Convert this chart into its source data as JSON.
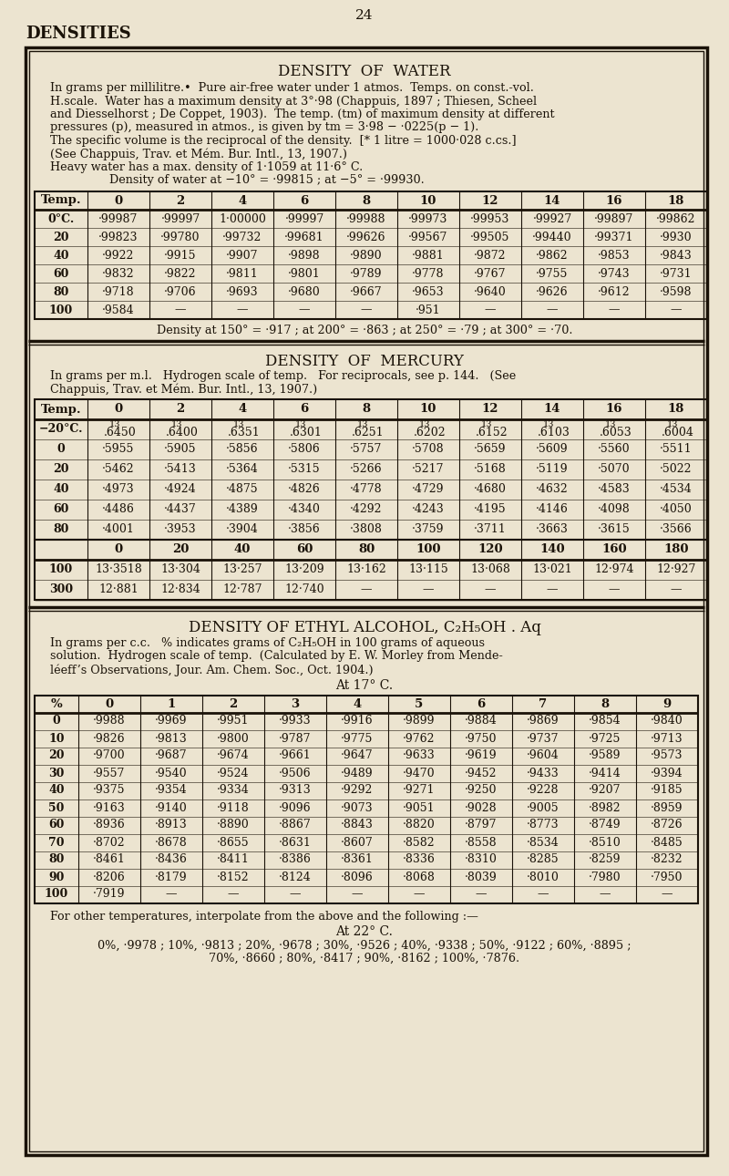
{
  "page_number": "24",
  "section_header": "DENSITIES",
  "bg_color": "#ece4d0",
  "text_color": "#1a1208",
  "water": {
    "title": "DENSITY  OF  WATER",
    "desc_lines": [
      "In grams per millilitre.•  Pure air-free water under 1 atmos.  Temps. on const.-vol.",
      "H.scale.  Water has a maximum density at 3°·98 (Chappuis, 1897 ; Thiesen, Scheel",
      "and Diesselhorst ; De Coppet, 1903).  The temp. (tm) of maximum density at different",
      "pressures (p), measured in atmos., is given by tm = 3·98 − ·0225(p − 1).",
      "The specific volume is the reciprocal of the density.  [* 1 litre = 1000·028 c.cs.]",
      "(See Chappuis, Trav. et Mém. Bur. Intl., 13, 1907.)",
      "Heavy water has a max. density of 1·1059 at 11·6° C.",
      "Density of water at −10° = ·99815 ; at −5° = ·99930."
    ],
    "col_headers": [
      "Temp.",
      "0",
      "2",
      "4",
      "6",
      "8",
      "10",
      "12",
      "14",
      "16",
      "18"
    ],
    "rows": [
      [
        "0°C.",
        "·99987",
        "·99997",
        "1·00000",
        "·99997",
        "·99988",
        "·99973",
        "·99953",
        "·99927",
        "·99897",
        "·99862"
      ],
      [
        "20",
        "·99823",
        "·99780",
        "·99732",
        "·99681",
        "·99626",
        "·99567",
        "·99505",
        "·99440",
        "·99371",
        "·9930"
      ],
      [
        "40",
        "·9922",
        "·9915",
        "·9907",
        "·9898",
        "·9890",
        "·9881",
        "·9872",
        "·9862",
        "·9853",
        "·9843"
      ],
      [
        "60",
        "·9832",
        "·9822",
        "·9811",
        "·9801",
        "·9789",
        "·9778",
        "·9767",
        "·9755",
        "·9743",
        "·9731"
      ],
      [
        "80",
        "·9718",
        "·9706",
        "·9693",
        "·9680",
        "·9667",
        "·9653",
        "·9640",
        "·9626",
        "·9612",
        "·9598"
      ],
      [
        "100",
        "·9584",
        "—",
        "—",
        "—",
        "—",
        "·951",
        "—",
        "—",
        "—",
        "—"
      ]
    ],
    "footer": "Density at 150° = ·917 ; at 200° = ·863 ; at 250° = ·79 ; at 300° = ·70."
  },
  "mercury": {
    "title": "DENSITY  OF  MERCURY",
    "desc_lines": [
      "In grams per m.l.   Hydrogen scale of temp.   For reciprocals, see p. 144.   (See",
      "Chappuis, Trav. et Mém. Bur. Intl., 13, 1907.)"
    ],
    "col_headers": [
      "Temp.",
      "0",
      "2",
      "4",
      "6",
      "8",
      "10",
      "12",
      "14",
      "16",
      "18"
    ],
    "rows_top": [
      [
        "−20°C.",
        "13|.6450",
        "13|.6400",
        "13|.6351",
        "13|.6301",
        "13|.6251",
        "13|.6202",
        "13|.6152",
        "13|.6103",
        "13|.6053",
        "13|.6004"
      ],
      [
        "0",
        "·5955",
        "·5905",
        "·5856",
        "·5806",
        "·5757",
        "·5708",
        "·5659",
        "·5609",
        "·5560",
        "·5511"
      ],
      [
        "20",
        "·5462",
        "·5413",
        "·5364",
        "·5315",
        "·5266",
        "·5217",
        "·5168",
        "·5119",
        "·5070",
        "·5022"
      ],
      [
        "40",
        "·4973",
        "·4924",
        "·4875",
        "·4826",
        "·4778",
        "·4729",
        "·4680",
        "·4632",
        "·4583",
        "·4534"
      ],
      [
        "60",
        "·4486",
        "·4437",
        "·4389",
        "·4340",
        "·4292",
        "·4243",
        "·4195",
        "·4146",
        "·4098",
        "·4050"
      ],
      [
        "80",
        "·4001",
        "·3953",
        "·3904",
        "·3856",
        "·3808",
        "·3759",
        "·3711",
        "·3663",
        "·3615",
        "·3566"
      ]
    ],
    "col_headers2": [
      "",
      "0",
      "20",
      "40",
      "60",
      "80",
      "100",
      "120",
      "140",
      "160",
      "180"
    ],
    "rows_bot": [
      [
        "100",
        "13·3518",
        "13·304",
        "13·257",
        "13·209",
        "13·162",
        "13·115",
        "13·068",
        "13·021",
        "12·974",
        "12·927"
      ],
      [
        "300",
        "12·881",
        "12·834",
        "12·787",
        "12·740",
        "—",
        "—",
        "—",
        "—",
        "—",
        "—"
      ]
    ]
  },
  "alcohol": {
    "title": "DENSITY OF ETHYL ALCOHOL, C₂H₅OH . Aq",
    "desc_lines": [
      "In grams per c.c.   % indicates grams of C₂H₅OH in 100 grams of aqueous",
      "solution.  Hydrogen scale of temp.  (Calculated by E. W. Morley from Mende-",
      "léeff’s Observations, Jour. Am. Chem. Soc., Oct. 1904.)"
    ],
    "subtitle": "At 17° C.",
    "col_headers": [
      "%",
      "0",
      "1",
      "2",
      "3",
      "4",
      "5",
      "6",
      "7",
      "8",
      "9"
    ],
    "rows": [
      [
        "0",
        "·9988",
        "·9969",
        "·9951",
        "·9933",
        "·9916",
        "·9899",
        "·9884",
        "·9869",
        "·9854",
        "·9840"
      ],
      [
        "10",
        "·9826",
        "·9813",
        "·9800",
        "·9787",
        "·9775",
        "·9762",
        "·9750",
        "·9737",
        "·9725",
        "·9713"
      ],
      [
        "20",
        "·9700",
        "·9687",
        "·9674",
        "·9661",
        "·9647",
        "·9633",
        "·9619",
        "·9604",
        "·9589",
        "·9573"
      ],
      [
        "30",
        "·9557",
        "·9540",
        "·9524",
        "·9506",
        "·9489",
        "·9470",
        "·9452",
        "·9433",
        "·9414",
        "·9394"
      ],
      [
        "40",
        "·9375",
        "·9354",
        "·9334",
        "·9313",
        "·9292",
        "·9271",
        "·9250",
        "·9228",
        "·9207",
        "·9185"
      ],
      [
        "50",
        "·9163",
        "·9140",
        "·9118",
        "·9096",
        "·9073",
        "·9051",
        "·9028",
        "·9005",
        "·8982",
        "·8959"
      ],
      [
        "60",
        "·8936",
        "·8913",
        "·8890",
        "·8867",
        "·8843",
        "·8820",
        "·8797",
        "·8773",
        "·8749",
        "·8726"
      ],
      [
        "70",
        "·8702",
        "·8678",
        "·8655",
        "·8631",
        "·8607",
        "·8582",
        "·8558",
        "·8534",
        "·8510",
        "·8485"
      ],
      [
        "80",
        "·8461",
        "·8436",
        "·8411",
        "·8386",
        "·8361",
        "·8336",
        "·8310",
        "·8285",
        "·8259",
        "·8232"
      ],
      [
        "90",
        "·8206",
        "·8179",
        "·8152",
        "·8124",
        "·8096",
        "·8068",
        "·8039",
        "·8010",
        "·7980",
        "·7950"
      ],
      [
        "100",
        "·7919",
        "—",
        "—",
        "—",
        "—",
        "—",
        "—",
        "—",
        "—",
        "—"
      ]
    ],
    "footer_line": "For other temperatures, interpolate from the above and the following :—",
    "footer_subtitle": "At 22° C.",
    "footer_data": "0%, ·9978 ; 10%, ·9813 ; 20%, ·9678 ; 30%, ·9526 ; 40%, ·9338 ; 50%, ·9122 ; 60%, ·8895 ;",
    "footer_data2": "70%, ·8660 ; 80%, ·8417 ; 90%, ·8162 ; 100%, ·7876."
  }
}
